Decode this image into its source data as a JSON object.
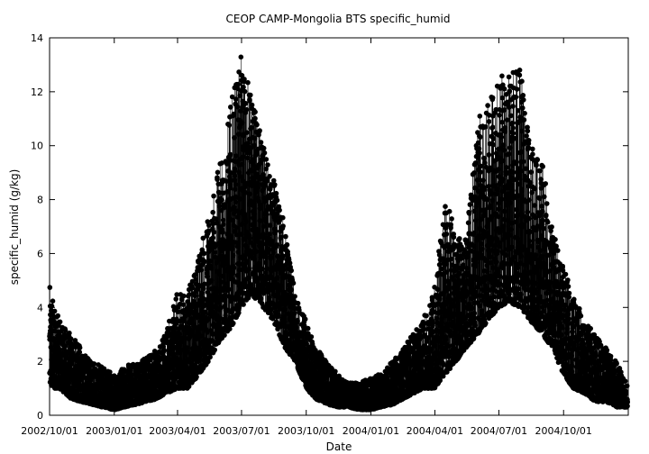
{
  "chart_data": {
    "type": "scatter",
    "title": "CEOP CAMP-Mongolia BTS  specific_humid",
    "xlabel": "Date",
    "ylabel": "specific_humid (g/kg)",
    "x_range": [
      "2002-10-01",
      "2005-01-01"
    ],
    "y_range": [
      0,
      14
    ],
    "x_ticks": [
      "2002/10/01",
      "2003/01/01",
      "2003/04/01",
      "2003/07/01",
      "2003/10/01",
      "2004/01/01",
      "2004/04/01",
      "2004/07/01",
      "2004/10/01"
    ],
    "y_ticks": [
      0,
      2,
      4,
      6,
      8,
      10,
      12,
      14
    ],
    "grid": false,
    "legend": "none",
    "marker": "filled-circle",
    "connected_by_thin_line": true,
    "series_color": "#000000",
    "envelope_note": "dense sub-daily observations; values below are approximate daily range (min/max) read from the plot",
    "series": [
      {
        "dates": [
          "2002-10-01",
          "2002-10-15",
          "2002-11-01",
          "2002-11-15",
          "2002-12-01",
          "2002-12-15",
          "2003-01-01",
          "2003-01-15",
          "2003-02-01",
          "2003-02-15",
          "2003-03-01",
          "2003-03-15",
          "2003-04-01",
          "2003-04-15",
          "2003-05-01",
          "2003-05-15",
          "2003-06-01",
          "2003-06-15",
          "2003-07-01",
          "2003-07-15",
          "2003-08-01",
          "2003-08-15",
          "2003-09-01",
          "2003-09-15",
          "2003-10-01",
          "2003-10-15",
          "2003-11-01",
          "2003-11-15",
          "2003-12-01",
          "2003-12-15",
          "2004-01-01",
          "2004-01-15",
          "2004-02-01",
          "2004-02-15",
          "2004-03-01",
          "2004-03-15",
          "2004-04-01",
          "2004-04-15",
          "2004-05-01",
          "2004-05-15",
          "2004-06-01",
          "2004-06-15",
          "2004-07-01",
          "2004-07-15",
          "2004-08-01",
          "2004-08-15",
          "2004-09-01",
          "2004-09-15",
          "2004-10-01",
          "2004-10-15",
          "2004-11-01",
          "2004-11-15",
          "2004-12-01",
          "2004-12-15",
          "2004-12-31"
        ],
        "min": [
          1.0,
          1.0,
          0.6,
          0.5,
          0.4,
          0.3,
          0.2,
          0.3,
          0.4,
          0.5,
          0.6,
          0.8,
          1.0,
          1.0,
          1.5,
          2.0,
          2.8,
          3.2,
          4.0,
          4.5,
          4.0,
          3.5,
          2.5,
          2.0,
          1.0,
          0.6,
          0.4,
          0.3,
          0.3,
          0.2,
          0.2,
          0.3,
          0.4,
          0.6,
          0.8,
          1.0,
          1.0,
          1.5,
          2.0,
          2.5,
          3.0,
          3.5,
          4.0,
          4.2,
          4.0,
          3.5,
          3.0,
          2.5,
          1.5,
          1.0,
          0.8,
          0.5,
          0.5,
          0.3,
          0.3
        ],
        "max": [
          4.8,
          3.5,
          3.0,
          2.5,
          2.0,
          1.8,
          1.6,
          1.8,
          2.0,
          2.2,
          2.5,
          3.0,
          4.6,
          4.5,
          6.0,
          7.5,
          9.5,
          11.5,
          13.4,
          12.0,
          10.0,
          9.0,
          7.0,
          4.5,
          3.5,
          2.5,
          2.0,
          1.5,
          1.2,
          1.2,
          1.4,
          1.6,
          2.0,
          2.5,
          3.0,
          3.5,
          5.0,
          8.0,
          7.0,
          6.5,
          11.0,
          11.5,
          12.5,
          13.1,
          12.8,
          10.0,
          9.4,
          7.0,
          5.5,
          4.5,
          3.5,
          3.0,
          2.5,
          2.0,
          1.2
        ]
      }
    ]
  }
}
